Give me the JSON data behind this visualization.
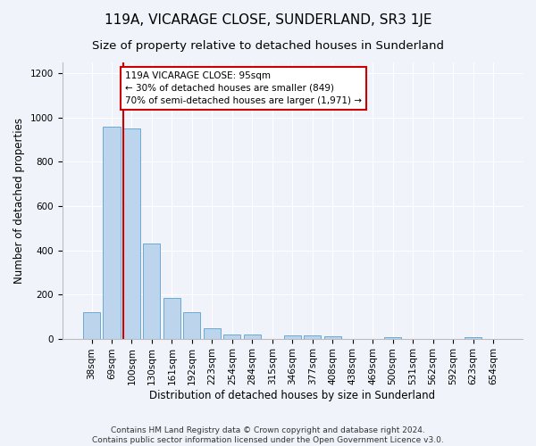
{
  "title": "119A, VICARAGE CLOSE, SUNDERLAND, SR3 1JE",
  "subtitle": "Size of property relative to detached houses in Sunderland",
  "xlabel": "Distribution of detached houses by size in Sunderland",
  "ylabel": "Number of detached properties",
  "categories": [
    "38sqm",
    "69sqm",
    "100sqm",
    "130sqm",
    "161sqm",
    "192sqm",
    "223sqm",
    "254sqm",
    "284sqm",
    "315sqm",
    "346sqm",
    "377sqm",
    "408sqm",
    "438sqm",
    "469sqm",
    "500sqm",
    "531sqm",
    "562sqm",
    "592sqm",
    "623sqm",
    "654sqm"
  ],
  "values": [
    120,
    960,
    950,
    430,
    185,
    120,
    45,
    20,
    20,
    0,
    15,
    15,
    10,
    0,
    0,
    8,
    0,
    0,
    0,
    8,
    0
  ],
  "bar_color": "#bcd4ec",
  "bar_edge_color": "#6aaad4",
  "vline_color": "#cc0000",
  "annotation_text": "119A VICARAGE CLOSE: 95sqm\n← 30% of detached houses are smaller (849)\n70% of semi-detached houses are larger (1,971) →",
  "annotation_box_color": "#ffffff",
  "annotation_box_edge": "#cc0000",
  "ylim": [
    0,
    1250
  ],
  "yticks": [
    0,
    200,
    400,
    600,
    800,
    1000,
    1200
  ],
  "footer": "Contains HM Land Registry data © Crown copyright and database right 2024.\nContains public sector information licensed under the Open Government Licence v3.0.",
  "background_color": "#f0f4fa",
  "plot_bg_color": "#f0f4fa",
  "title_fontsize": 11,
  "subtitle_fontsize": 9.5,
  "axis_label_fontsize": 8.5,
  "tick_fontsize": 7.5,
  "footer_fontsize": 6.5,
  "grid_color": "#ffffff"
}
